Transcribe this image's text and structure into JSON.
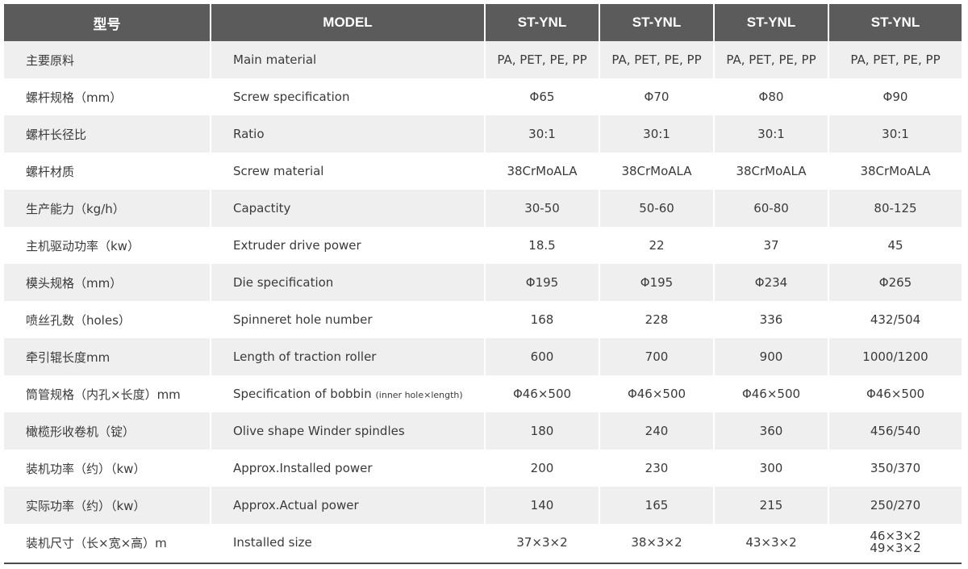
{
  "header": {
    "col_cn": "型号",
    "col_en": "MODEL",
    "models": [
      "ST-YNL",
      "ST-YNL",
      "ST-YNL",
      "ST-YNL"
    ]
  },
  "rows": [
    {
      "cn": "主要原料",
      "en": "Main material",
      "values": [
        "PA, PET, PE, PP",
        "PA, PET, PE, PP",
        "PA, PET, PE, PP",
        "PA, PET, PE, PP"
      ]
    },
    {
      "cn": "螺杆规格（mm）",
      "en": "Screw specification",
      "values": [
        "Φ65",
        "Φ70",
        "Φ80",
        "Φ90"
      ]
    },
    {
      "cn": "螺杆长径比",
      "en": "Ratio",
      "values": [
        "30:1",
        "30:1",
        "30:1",
        "30:1"
      ]
    },
    {
      "cn": "螺杆材质",
      "en": "Screw material",
      "values": [
        "38CrMoALA",
        "38CrMoALA",
        "38CrMoALA",
        "38CrMoALA"
      ]
    },
    {
      "cn": "生产能力（kg/h）",
      "en": "Capactity",
      "values": [
        "30-50",
        "50-60",
        "60-80",
        "80-125"
      ]
    },
    {
      "cn": "主机驱动功率（kw）",
      "en": "Extruder drive power",
      "values": [
        "18.5",
        "22",
        "37",
        "45"
      ]
    },
    {
      "cn": "模头规格（mm）",
      "en": "Die specification",
      "values": [
        "Φ195",
        "Φ195",
        "Φ234",
        "Φ265"
      ]
    },
    {
      "cn": "喷丝孔数（holes）",
      "en": "Spinneret hole number",
      "values": [
        "168",
        "228",
        "336",
        "432/504"
      ]
    },
    {
      "cn": "牵引辊长度mm",
      "en": "Length of traction roller",
      "values": [
        "600",
        "700",
        "900",
        "1000/1200"
      ]
    },
    {
      "cn": "筒管规格（内孔×长度）mm",
      "en": "Specification of bobbin",
      "en_small": "(inner hole×length)",
      "values": [
        "Φ46×500",
        "Φ46×500",
        "Φ46×500",
        "Φ46×500"
      ]
    },
    {
      "cn": "橄榄形收卷机（锭）",
      "en": "Olive shape Winder spindles",
      "values": [
        "180",
        "240",
        "360",
        "456/540"
      ]
    },
    {
      "cn": "装机功率（约）（kw）",
      "en": "Approx.Installed power",
      "values": [
        "200",
        "230",
        "300",
        "350/370"
      ]
    },
    {
      "cn": "实际功率（约）（kw）",
      "en": "Approx.Actual power",
      "values": [
        "140",
        "165",
        "215",
        "250/270"
      ]
    },
    {
      "cn": "装机尺寸（长×宽×高）m",
      "en": "Installed size",
      "values": [
        "37×3×2",
        "38×3×2",
        "43×3×2"
      ],
      "last_value_lines": [
        "46×3×2",
        "49×3×2"
      ]
    }
  ]
}
